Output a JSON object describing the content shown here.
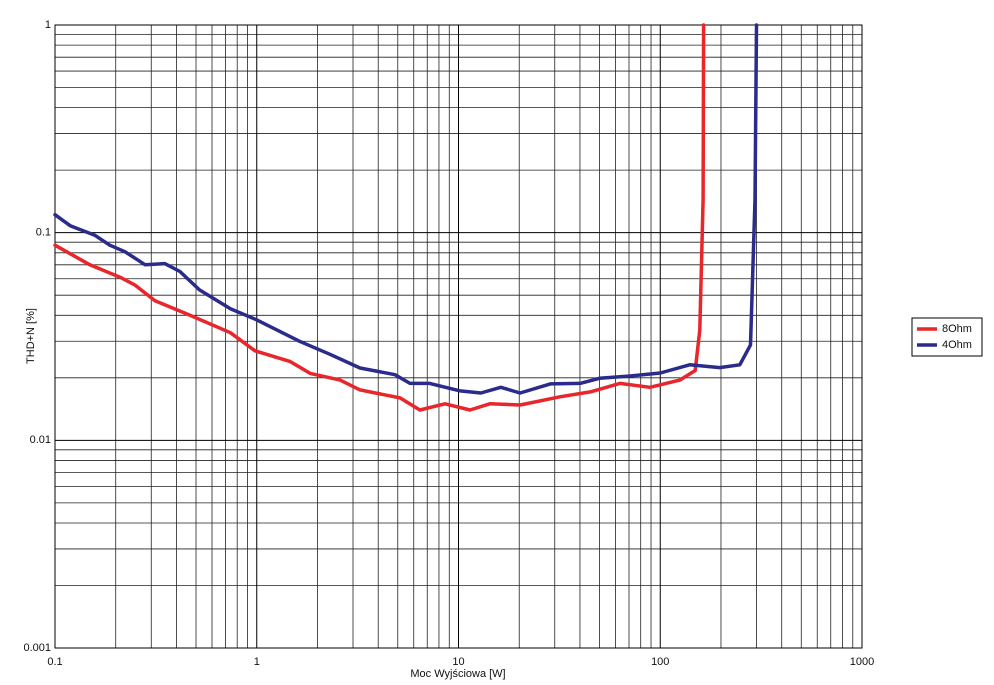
{
  "chart_data": {
    "type": "line",
    "xlabel": "Moc Wyjściowa [W]",
    "ylabel": "THD+N [%]",
    "xscale": "log",
    "yscale": "log",
    "grid": true,
    "minor_grid": true,
    "legend": "right",
    "xlim": [
      0.1,
      1000
    ],
    "xticks": [
      0.1,
      1,
      10,
      100,
      1000
    ],
    "ylim": [
      0.001,
      1
    ],
    "yticks": [
      0.001,
      0.01,
      0.1,
      1
    ],
    "series": [
      {
        "name": "8Ohm",
        "color": "#e8262b",
        "x": [
          0.1,
          0.149,
          0.21,
          0.249,
          0.313,
          0.467,
          0.74,
          0.98,
          1.46,
          1.84,
          2.59,
          3.25,
          5.13,
          6.44,
          8.57,
          11.4,
          14.3,
          20.2,
          31.8,
          45,
          63,
          89,
          125,
          149,
          157,
          163,
          164
        ],
        "values": [
          0.087,
          0.07,
          0.061,
          0.056,
          0.047,
          0.04,
          0.033,
          0.027,
          0.024,
          0.021,
          0.0195,
          0.0175,
          0.016,
          0.014,
          0.015,
          0.014,
          0.015,
          0.0148,
          0.0162,
          0.0171,
          0.0188,
          0.018,
          0.0195,
          0.0217,
          0.034,
          0.144,
          1
        ]
      },
      {
        "name": "4Ohm",
        "color": "#2b2b8c",
        "x": [
          0.1,
          0.119,
          0.158,
          0.187,
          0.222,
          0.28,
          0.35,
          0.416,
          0.52,
          0.74,
          1,
          1.63,
          2.3,
          3.25,
          4.85,
          5.75,
          7.2,
          10.2,
          12.9,
          16.2,
          20.2,
          28.5,
          40,
          50,
          71,
          100,
          140,
          197,
          248,
          280,
          295,
          300
        ],
        "values": [
          0.122,
          0.108,
          0.097,
          0.087,
          0.081,
          0.07,
          0.071,
          0.065,
          0.053,
          0.043,
          0.038,
          0.03,
          0.026,
          0.0223,
          0.0207,
          0.0188,
          0.0188,
          0.0173,
          0.0169,
          0.018,
          0.0169,
          0.0187,
          0.0188,
          0.0199,
          0.0204,
          0.0211,
          0.0231,
          0.0224,
          0.0231,
          0.0288,
          0.144,
          1
        ]
      }
    ]
  }
}
